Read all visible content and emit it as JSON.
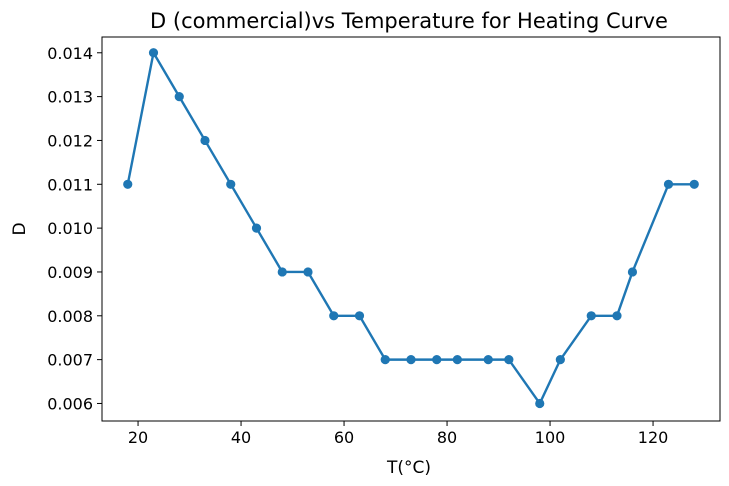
{
  "chart_data": {
    "type": "line",
    "title": "D (commercial)vs Temperature for Heating Curve",
    "xlabel": "T(°C)",
    "ylabel": "D",
    "xlim": [
      13,
      133
    ],
    "ylim": [
      0.0056,
      0.01436
    ],
    "x_ticks": [
      20,
      40,
      60,
      80,
      100,
      120
    ],
    "x_tick_labels": [
      "20",
      "40",
      "60",
      "80",
      "100",
      "120"
    ],
    "y_ticks": [
      0.006,
      0.007,
      0.008,
      0.009,
      0.01,
      0.011,
      0.012,
      0.013,
      0.014
    ],
    "y_tick_labels": [
      "0.006",
      "0.007",
      "0.008",
      "0.009",
      "0.010",
      "0.011",
      "0.012",
      "0.013",
      "0.014"
    ],
    "grid": false,
    "series": [
      {
        "color": "#1f77b4",
        "marker": "circle",
        "x": [
          18,
          23,
          28,
          33,
          38,
          43,
          48,
          53,
          58,
          63,
          68,
          73,
          78,
          82,
          88,
          92,
          98,
          102,
          108,
          113,
          116,
          123,
          128
        ],
        "y": [
          0.011,
          0.014,
          0.013,
          0.012,
          0.011,
          0.01,
          0.009,
          0.009,
          0.008,
          0.008,
          0.007,
          0.007,
          0.007,
          0.007,
          0.007,
          0.007,
          0.006,
          0.007,
          0.008,
          0.008,
          0.009,
          0.011,
          0.011
        ]
      }
    ]
  }
}
